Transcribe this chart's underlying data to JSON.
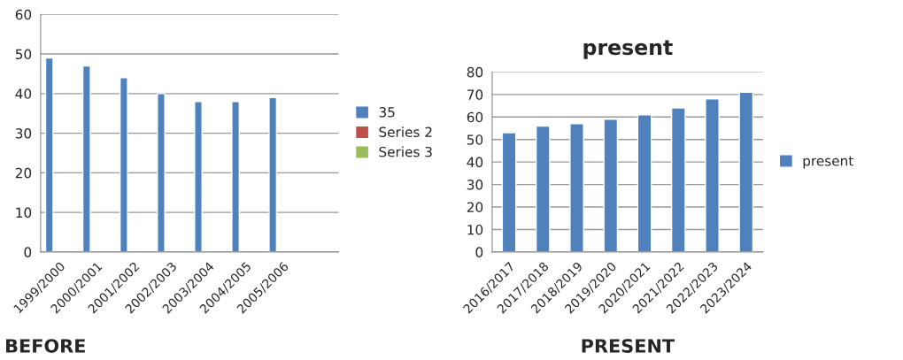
{
  "chart_data": [
    {
      "type": "bar",
      "categories": [
        "1999/2000",
        "2000/2001",
        "2001/2002",
        "2002/2003",
        "2003/2004",
        "2004/2005",
        "2005/2006",
        null
      ],
      "series": [
        {
          "name": "35",
          "color": "#4f81bd",
          "values": [
            49,
            47,
            44,
            40,
            38,
            38,
            39,
            null
          ]
        },
        {
          "name": "Series 2",
          "color": "#c0504d",
          "values": [
            null,
            null,
            null,
            null,
            null,
            null,
            null,
            null
          ]
        },
        {
          "name": "Series 3",
          "color": "#9bbb59",
          "values": [
            null,
            null,
            null,
            null,
            null,
            null,
            null,
            null
          ]
        }
      ],
      "ylim": [
        0,
        60
      ],
      "yticks": [
        0,
        10,
        20,
        30,
        40,
        50,
        60
      ],
      "grid": "y",
      "legend": "right",
      "annotations": [
        "BEFORE"
      ]
    },
    {
      "type": "bar",
      "title": "present",
      "categories": [
        "2016/2017",
        "2017/2018",
        "2018/2019",
        "2019/2020",
        "2020/2021",
        "2021/2022",
        "2022/2023",
        "2023/2024"
      ],
      "series": [
        {
          "name": "present",
          "color": "#4f81bd",
          "values": [
            53,
            56,
            57,
            59,
            61,
            64,
            68,
            71
          ]
        }
      ],
      "ylim": [
        0,
        80
      ],
      "yticks": [
        0,
        10,
        20,
        30,
        40,
        50,
        60,
        70,
        80
      ],
      "grid": "y",
      "legend": "right",
      "annotations": [
        "PRESENT"
      ]
    }
  ]
}
